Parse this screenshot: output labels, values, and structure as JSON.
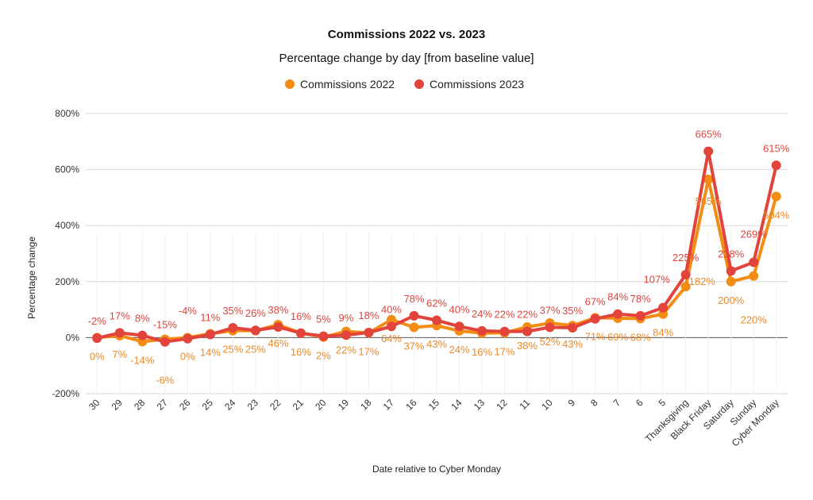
{
  "chart_data": {
    "type": "line",
    "title": "Commissions 2022 vs. 2023",
    "subtitle": "Percentage change by day [from baseline value]",
    "xlabel": "Date relative to Cyber Monday",
    "ylabel": "Percentage change",
    "ylim": [
      -200,
      800
    ],
    "yticks": [
      -200,
      0,
      200,
      400,
      600,
      800
    ],
    "ytick_labels": [
      "-200%",
      "0%",
      "200%",
      "400%",
      "600%",
      "800%"
    ],
    "grid": true,
    "legend_position": "top",
    "categories": [
      "30",
      "29",
      "28",
      "27",
      "26",
      "25",
      "24",
      "23",
      "22",
      "21",
      "20",
      "19",
      "18",
      "17",
      "16",
      "15",
      "14",
      "13",
      "12",
      "11",
      "10",
      "9",
      "8",
      "7",
      "6",
      "5",
      "Thanksgiving",
      "Black Friday",
      "Saturday",
      "Sunday",
      "Cyber Monday"
    ],
    "series": [
      {
        "name": "Commissions 2022",
        "color": "#F28C12",
        "label_color": "#EB8A2A",
        "values": [
          0,
          7,
          -14,
          -6,
          0,
          14,
          25,
          25,
          46,
          16,
          2,
          22,
          17,
          64,
          37,
          43,
          24,
          16,
          17,
          38,
          52,
          43,
          71,
          69,
          68,
          84,
          182,
          565,
          200,
          220,
          504
        ]
      },
      {
        "name": "Commissions 2023",
        "color": "#E2433A",
        "label_color": "#D9473F",
        "values": [
          -2,
          17,
          8,
          -15,
          -4,
          11,
          35,
          26,
          38,
          16,
          5,
          9,
          18,
          40,
          78,
          62,
          40,
          24,
          22,
          22,
          37,
          35,
          67,
          84,
          78,
          107,
          225,
          665,
          238,
          269,
          615
        ]
      }
    ]
  }
}
